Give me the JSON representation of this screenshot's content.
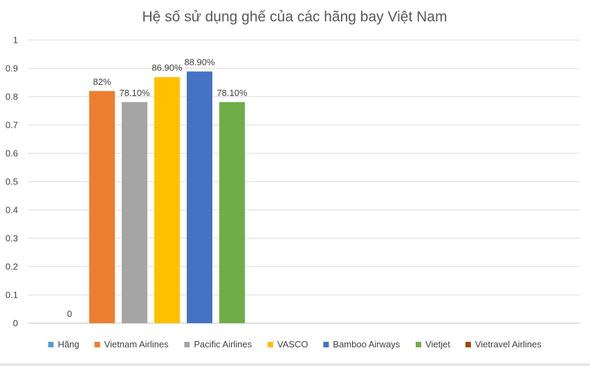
{
  "chart_data": {
    "type": "bar",
    "title": "Hệ số sử dụng ghế của các hãng bay Việt Nam",
    "xlabel": "",
    "ylabel": "",
    "ylim": [
      0,
      1
    ],
    "yticks": [
      "0",
      "0.1",
      "0.2",
      "0.3",
      "0.4",
      "0.5",
      "0.6",
      "0.7",
      "0.8",
      "0.9",
      "1"
    ],
    "grid": true,
    "legend_position": "bottom",
    "series": [
      {
        "name": "Hãng",
        "value": 0,
        "label": "0",
        "color": "#5b9bd5"
      },
      {
        "name": "Vietnam Airlines",
        "value": 0.82,
        "label": "82%",
        "color": "#ed7d31"
      },
      {
        "name": "Pacific Airlines",
        "value": 0.781,
        "label": "78.10%",
        "color": "#a5a5a5"
      },
      {
        "name": "VASCO",
        "value": 0.869,
        "label": "86.90%",
        "color": "#ffc000"
      },
      {
        "name": "Bamboo Airways",
        "value": 0.889,
        "label": "88.90%",
        "color": "#4472c4"
      },
      {
        "name": "Vietjet",
        "value": 0.781,
        "label": "78.10%",
        "color": "#70ad47"
      },
      {
        "name": "Vietravel Airlines",
        "value": null,
        "label": "",
        "color": "#9e480e"
      }
    ]
  }
}
